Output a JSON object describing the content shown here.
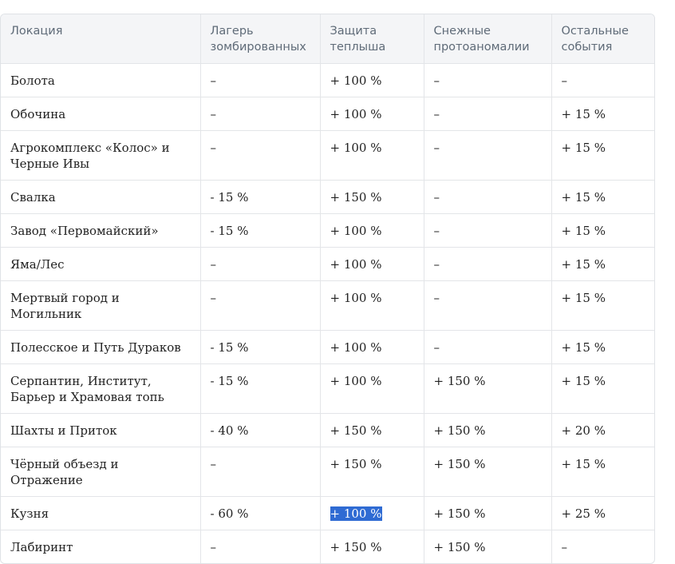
{
  "table": {
    "headers": [
      "Локация",
      "Лагерь зомбированных",
      "Защита теплыша",
      "Снежные протоаномалии",
      "Остальные события"
    ],
    "rows": [
      [
        "Болота",
        "–",
        "+ 100 %",
        "–",
        "–"
      ],
      [
        "Обочина",
        "–",
        "+ 100 %",
        "–",
        "+ 15 %"
      ],
      [
        "Агрокомплекс «Колос» и Черные Ивы",
        "–",
        "+ 100 %",
        "–",
        "+ 15 %"
      ],
      [
        "Свалка",
        "- 15 %",
        "+ 150 %",
        "–",
        "+ 15 %"
      ],
      [
        "Завод «Первомайский»",
        "- 15 %",
        "+ 100 %",
        "–",
        "+ 15 %"
      ],
      [
        "Яма/Лес",
        "–",
        "+ 100 %",
        "–",
        "+ 15 %"
      ],
      [
        "Мертвый город и Могильник",
        "–",
        "+ 100 %",
        "–",
        "+ 15 %"
      ],
      [
        "Полесское и Путь Дураков",
        "- 15 %",
        "+ 100 %",
        "–",
        "+ 15 %"
      ],
      [
        "Серпантин, Институт, Барьер и Храмовая топь",
        "- 15 %",
        "+ 100 %",
        "+ 150 %",
        "+ 15 %"
      ],
      [
        "Шахты и Приток",
        "- 40 %",
        "+ 150 %",
        "+ 150 %",
        "+ 20 %"
      ],
      [
        "Чёрный объезд и Отражение",
        "–",
        "+ 150 %",
        "+ 150 %",
        "+ 15 %"
      ],
      [
        "Кузня",
        "- 60 %",
        "+ 100 %",
        "+ 150 %",
        "+ 25 %"
      ],
      [
        "Лабиринт",
        "–",
        "+ 150 %",
        "+ 150 %",
        "–"
      ]
    ]
  },
  "selection": {
    "row": 11,
    "col": 2,
    "color": "#2f6bd3"
  }
}
